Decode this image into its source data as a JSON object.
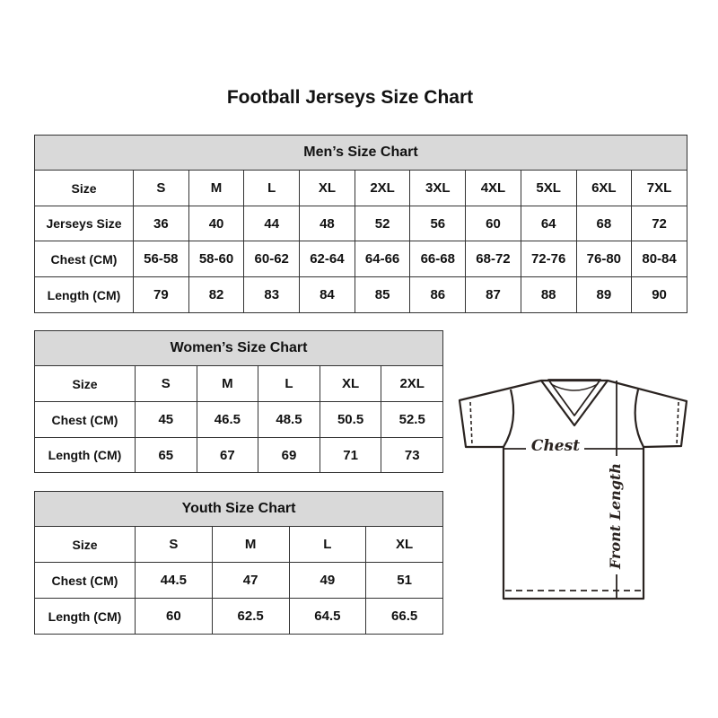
{
  "title": "Football Jerseys Size Chart",
  "tables": {
    "men": {
      "heading": "Men’s Size Chart",
      "rows": [
        [
          "Size",
          "S",
          "M",
          "L",
          "XL",
          "2XL",
          "3XL",
          "4XL",
          "5XL",
          "6XL",
          "7XL"
        ],
        [
          "Jerseys Size",
          "36",
          "40",
          "44",
          "48",
          "52",
          "56",
          "60",
          "64",
          "68",
          "72"
        ],
        [
          "Chest (CM)",
          "56-58",
          "58-60",
          "60-62",
          "62-64",
          "64-66",
          "66-68",
          "68-72",
          "72-76",
          "76-80",
          "80-84"
        ],
        [
          "Length (CM)",
          "79",
          "82",
          "83",
          "84",
          "85",
          "86",
          "87",
          "88",
          "89",
          "90"
        ]
      ]
    },
    "women": {
      "heading": "Women’s Size Chart",
      "rows": [
        [
          "Size",
          "S",
          "M",
          "L",
          "XL",
          "2XL"
        ],
        [
          "Chest (CM)",
          "45",
          "46.5",
          "48.5",
          "50.5",
          "52.5"
        ],
        [
          "Length (CM)",
          "65",
          "67",
          "69",
          "71",
          "73"
        ]
      ]
    },
    "youth": {
      "heading": "Youth Size Chart",
      "rows": [
        [
          "Size",
          "S",
          "M",
          "L",
          "XL"
        ],
        [
          "Chest (CM)",
          "44.5",
          "47",
          "49",
          "51"
        ],
        [
          "Length (CM)",
          "60",
          "62.5",
          "64.5",
          "66.5"
        ]
      ]
    }
  },
  "diagram": {
    "chest_label": "Chest",
    "length_label": "Front Length"
  }
}
